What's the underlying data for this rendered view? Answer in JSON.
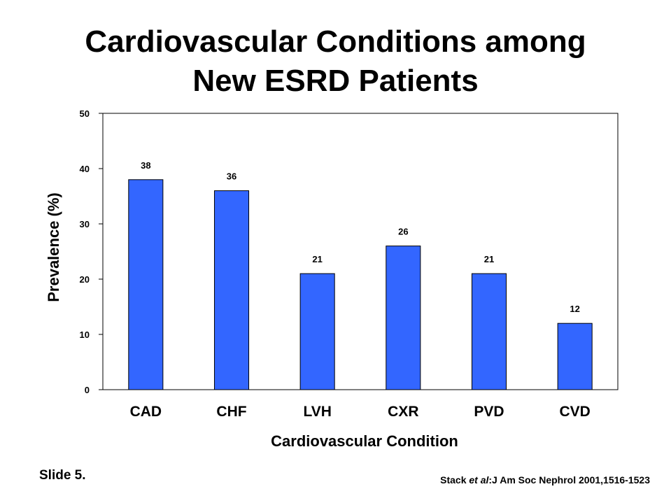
{
  "slide": {
    "title_line1": "Cardiovascular Conditions among",
    "title_line2": "New ESRD Patients",
    "slide_number": "Slide 5.",
    "citation": {
      "author": "Stack ",
      "etal": "et al",
      "rest": ":J Am Soc Nephrol 2001,1516-1523"
    }
  },
  "chart_data": {
    "type": "bar",
    "title": "Cardiovascular Conditions among New ESRD Patients",
    "xlabel": "Cardiovascular Condition",
    "ylabel": "Prevalence (%)",
    "categories": [
      "CAD",
      "CHF",
      "LVH",
      "CXR",
      "PVD",
      "CVD"
    ],
    "values": [
      38,
      36,
      21,
      26,
      21,
      12
    ],
    "data_labels": [
      "38",
      "36",
      "21",
      "26",
      "21",
      "12"
    ],
    "ylim": [
      0,
      50
    ],
    "yticks": [
      0,
      10,
      20,
      30,
      40,
      50
    ],
    "grid": false,
    "legend": "none",
    "bar_color": "#3366FF",
    "bar_stroke": "#000000"
  }
}
